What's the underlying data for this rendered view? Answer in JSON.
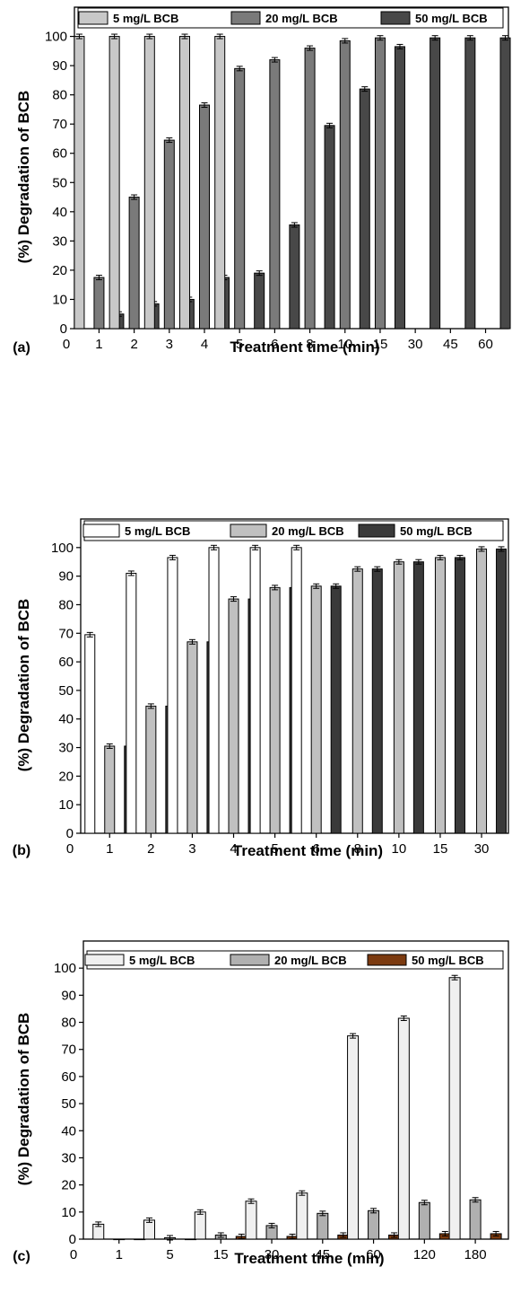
{
  "chart_data": [
    {
      "type": "bar",
      "panel_label": "(a)",
      "xlabel": "Treatment  time  (min)",
      "ylabel": "(%) Degradation of BCB",
      "ylim": [
        0,
        110
      ],
      "yticks": [
        0,
        10,
        20,
        30,
        40,
        50,
        60,
        70,
        80,
        90,
        100
      ],
      "origin_label": "0",
      "categories": [
        "1",
        "2",
        "3",
        "4",
        "5",
        "6",
        "8",
        "10",
        "15",
        "30",
        "45",
        "60"
      ],
      "grid": false,
      "legend_position": "top",
      "error_bars": true,
      "series": [
        {
          "name": "5 mg/L BCB",
          "color": "#c8c8c8",
          "values": [
            100,
            100,
            100,
            100,
            100,
            null,
            null,
            null,
            null,
            null,
            null,
            null
          ]
        },
        {
          "name": "20 mg/L BCB",
          "color": "#7a7a7a",
          "values": [
            17.5,
            45,
            64.5,
            76.5,
            89,
            92,
            96,
            98.5,
            99.5,
            null,
            null,
            null
          ]
        },
        {
          "name": "50 mg/L BCB",
          "color": "#484848",
          "values": [
            5,
            8.5,
            10,
            17.5,
            19,
            35.5,
            69.5,
            82,
            96.5,
            99.5,
            99.5,
            99.5
          ]
        }
      ]
    },
    {
      "type": "bar",
      "panel_label": "(b)",
      "xlabel": "Treatment  time  (min)",
      "ylabel": "(%) Degradation of BCB",
      "ylim": [
        0,
        110
      ],
      "yticks": [
        0,
        10,
        20,
        30,
        40,
        50,
        60,
        70,
        80,
        90,
        100
      ],
      "origin_label": "0",
      "categories": [
        "1",
        "2",
        "3",
        "4",
        "5",
        "6",
        "8",
        "10",
        "15",
        "30"
      ],
      "grid": false,
      "legend_position": "top",
      "error_bars": true,
      "series": [
        {
          "name": "5 mg/L BCB",
          "color": "#ffffff",
          "values": [
            69.5,
            91,
            96.5,
            100,
            100,
            100,
            null,
            null,
            null,
            null
          ]
        },
        {
          "name": "20 mg/L BCB",
          "color": "#c0c0c0",
          "values": [
            30.5,
            44.5,
            67,
            82,
            86,
            86.5,
            92.5,
            95,
            96.5,
            99.5
          ]
        },
        {
          "name": "50 mg/L BCB",
          "color": "#3a3a3a",
          "values": [
            30.5,
            44.5,
            67,
            82,
            86,
            86.5,
            92.5,
            95,
            96.5,
            99.5
          ]
        }
      ]
    },
    {
      "type": "bar",
      "panel_label": "(c)",
      "xlabel": "Treatment time (min)",
      "ylabel": "(%) Degradation of BCB",
      "ylim": [
        0,
        110
      ],
      "yticks": [
        0,
        10,
        20,
        30,
        40,
        50,
        60,
        70,
        80,
        90,
        100
      ],
      "origin_label": "0",
      "categories": [
        "1",
        "5",
        "15",
        "30",
        "45",
        "60",
        "120",
        "180"
      ],
      "grid": false,
      "legend_position": "top",
      "error_bars": true,
      "series": [
        {
          "name": "5 mg/L BCB",
          "color": "#f0f0f0",
          "values": [
            5.5,
            7,
            10,
            14,
            17,
            75,
            81.5,
            96.5
          ]
        },
        {
          "name": "20 mg/L BCB",
          "color": "#b0b0b0",
          "values": [
            0,
            0.5,
            1.5,
            5,
            9.5,
            10.5,
            13.5,
            14.5
          ]
        },
        {
          "name": "50 mg/L BCB",
          "color": "#7b3a10",
          "values": [
            0,
            0,
            1,
            1,
            1.5,
            1.5,
            2,
            2
          ]
        }
      ]
    }
  ]
}
